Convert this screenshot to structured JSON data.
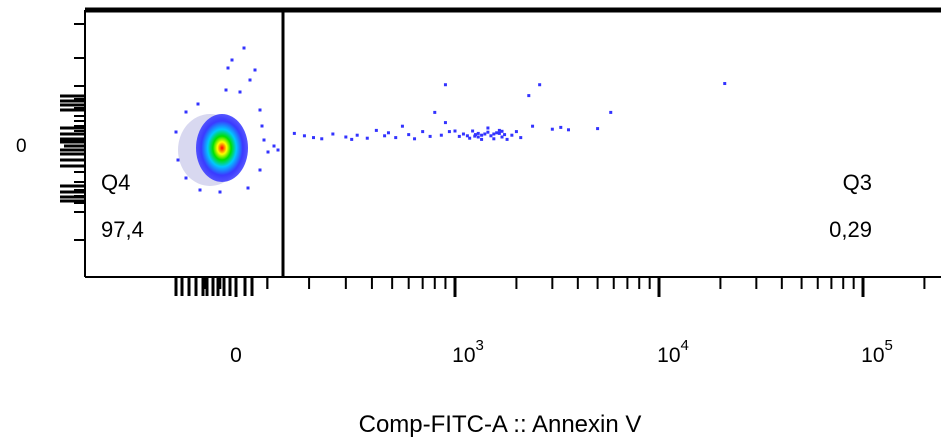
{
  "chart_data": {
    "type": "scatter",
    "subtype": "flow-cytometry-density-dot-plot",
    "xlabel": "Comp-FITC-A :: Annexin V",
    "x_scale": "biexponential",
    "x_ticks": [
      {
        "value": 0,
        "base": "0",
        "exp": ""
      },
      {
        "value": 1000,
        "base": "10",
        "exp": "3"
      },
      {
        "value": 10000,
        "base": "10",
        "exp": "4"
      },
      {
        "value": 100000,
        "base": "10",
        "exp": "5"
      }
    ],
    "y_ticks": [
      {
        "value": 0,
        "label": "0"
      }
    ],
    "gate_x": 150,
    "quadrants": [
      {
        "name": "Q4",
        "percent": "97,4",
        "position": "bottom-left"
      },
      {
        "name": "Q3",
        "percent": "0,29",
        "position": "bottom-right"
      }
    ],
    "events_right_of_gate": [
      [
        170,
        210
      ],
      [
        190,
        170
      ],
      [
        210,
        140
      ],
      [
        230,
        120
      ],
      [
        260,
        200
      ],
      [
        300,
        150
      ],
      [
        320,
        110
      ],
      [
        340,
        180
      ],
      [
        380,
        130
      ],
      [
        420,
        260
      ],
      [
        460,
        170
      ],
      [
        480,
        220
      ],
      [
        520,
        140
      ],
      [
        560,
        330
      ],
      [
        600,
        190
      ],
      [
        640,
        120
      ],
      [
        700,
        240
      ],
      [
        760,
        160
      ],
      [
        800,
        560
      ],
      [
        860,
        180
      ],
      [
        900,
        390
      ],
      [
        940,
        240
      ],
      [
        1000,
        250
      ],
      [
        1050,
        160
      ],
      [
        1100,
        200
      ],
      [
        1150,
        170
      ],
      [
        1180,
        130
      ],
      [
        1220,
        250
      ],
      [
        1260,
        190
      ],
      [
        1300,
        150
      ],
      [
        1350,
        110
      ],
      [
        1400,
        200
      ],
      [
        1450,
        300
      ],
      [
        1500,
        170
      ],
      [
        1550,
        120
      ],
      [
        1600,
        220
      ],
      [
        1650,
        260
      ],
      [
        1700,
        150
      ],
      [
        1750,
        190
      ],
      [
        1800,
        110
      ],
      [
        1900,
        180
      ],
      [
        2000,
        240
      ],
      [
        2100,
        140
      ],
      [
        2400,
        330
      ],
      [
        2600,
        1050
      ],
      [
        3000,
        280
      ],
      [
        3300,
        310
      ],
      [
        3600,
        270
      ],
      [
        5000,
        290
      ],
      [
        5800,
        560
      ],
      [
        2300,
        840
      ],
      [
        900,
        1050
      ],
      [
        21000,
        1100
      ],
      [
        1300,
        210
      ],
      [
        1450,
        230
      ],
      [
        1550,
        200
      ],
      [
        1650,
        210
      ],
      [
        1350,
        180
      ],
      [
        1250,
        165
      ],
      [
        1700,
        245
      ]
    ],
    "colors": {
      "scale": [
        "#d8d8f0",
        "#3a3aff",
        "#00c8ff",
        "#00e000",
        "#ffff00",
        "#ff0000"
      ],
      "gate_line": "#000000",
      "dots": "#3333ff"
    }
  }
}
